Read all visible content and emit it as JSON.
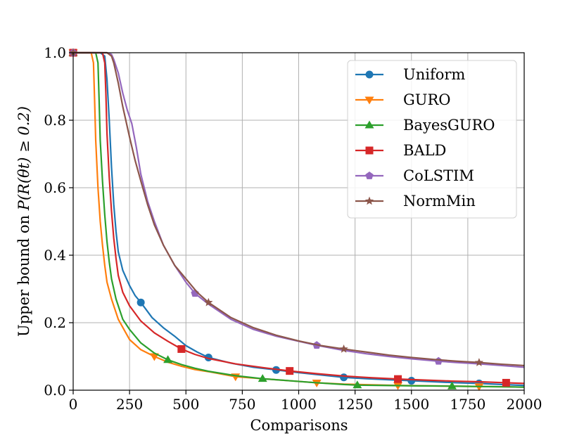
{
  "chart_data": {
    "type": "line",
    "title": "",
    "xlabel": "Comparisons",
    "ylabel_prefix": "Upper bound on ",
    "ylabel_math": "P(R(θt) ≥ 0.2)",
    "xlim": [
      0,
      2000
    ],
    "ylim": [
      0,
      1.0
    ],
    "grid": true,
    "legend_position": "top-right",
    "xticks": [
      0,
      250,
      500,
      750,
      1000,
      1250,
      1500,
      1750,
      2000
    ],
    "xtick_labels": [
      "0",
      "250",
      "500",
      "750",
      "1000",
      "1250",
      "1500",
      "1750",
      "2000"
    ],
    "yticks": [
      0.0,
      0.2,
      0.4,
      0.6,
      0.8,
      1.0
    ],
    "ytick_labels": [
      "0.0",
      "0.2",
      "0.4",
      "0.6",
      "0.8",
      "1.0"
    ],
    "series": [
      {
        "name": "Uniform",
        "color": "#1f77b4",
        "marker": "circle",
        "x": [
          0,
          120,
          140,
          150,
          160,
          170,
          180,
          190,
          200,
          220,
          250,
          275,
          300,
          350,
          400,
          450,
          500,
          550,
          600,
          700,
          800,
          900,
          1000,
          1100,
          1200,
          1300,
          1400,
          1500,
          1600,
          1700,
          1800,
          1900,
          2000
        ],
        "y": [
          1.0,
          1.0,
          0.99,
          0.92,
          0.8,
          0.66,
          0.55,
          0.47,
          0.41,
          0.355,
          0.31,
          0.28,
          0.26,
          0.215,
          0.185,
          0.16,
          0.132,
          0.113,
          0.097,
          0.08,
          0.068,
          0.06,
          0.052,
          0.045,
          0.038,
          0.034,
          0.031,
          0.028,
          0.025,
          0.022,
          0.02,
          0.017,
          0.014
        ],
        "marker_x": [
          0,
          300,
          600,
          900,
          1200,
          1500,
          1800
        ],
        "marker_y": [
          1.0,
          0.26,
          0.097,
          0.06,
          0.038,
          0.028,
          0.02
        ]
      },
      {
        "name": "GURO",
        "color": "#ff7f0e",
        "marker": "triangle-down",
        "x": [
          0,
          80,
          90,
          95,
          100,
          110,
          120,
          130,
          140,
          150,
          170,
          200,
          250,
          300,
          360,
          420,
          480,
          540,
          600,
          720,
          840,
          960,
          1080,
          1200,
          1320,
          1440,
          1560,
          1680,
          1800,
          1920,
          2000
        ],
        "y": [
          1.0,
          1.0,
          0.97,
          0.86,
          0.74,
          0.6,
          0.5,
          0.43,
          0.37,
          0.32,
          0.27,
          0.21,
          0.15,
          0.12,
          0.1,
          0.083,
          0.071,
          0.061,
          0.055,
          0.04,
          0.034,
          0.028,
          0.022,
          0.018,
          0.016,
          0.014,
          0.013,
          0.012,
          0.011,
          0.01,
          0.009
        ],
        "marker_x": [
          0,
          360,
          720,
          1080,
          1440,
          1800
        ],
        "marker_y": [
          1.0,
          0.1,
          0.04,
          0.022,
          0.014,
          0.011
        ]
      },
      {
        "name": "BayesGURO",
        "color": "#2ca02c",
        "marker": "triangle-up",
        "x": [
          0,
          100,
          110,
          115,
          120,
          130,
          140,
          150,
          160,
          170,
          190,
          220,
          250,
          300,
          360,
          420,
          480,
          540,
          600,
          720,
          840,
          960,
          1080,
          1200,
          1260,
          1380,
          1500,
          1680,
          1800,
          1920,
          2000
        ],
        "y": [
          1.0,
          1.0,
          0.97,
          0.86,
          0.74,
          0.62,
          0.52,
          0.44,
          0.38,
          0.33,
          0.27,
          0.21,
          0.18,
          0.14,
          0.11,
          0.09,
          0.076,
          0.065,
          0.056,
          0.043,
          0.034,
          0.028,
          0.022,
          0.017,
          0.015,
          0.014,
          0.013,
          0.012,
          0.011,
          0.01,
          0.009
        ],
        "marker_x": [
          0,
          420,
          840,
          1260,
          1680
        ],
        "marker_y": [
          1.0,
          0.09,
          0.034,
          0.015,
          0.012
        ]
      },
      {
        "name": "BALD",
        "color": "#d62728",
        "marker": "square",
        "x": [
          0,
          130,
          140,
          145,
          150,
          160,
          170,
          180,
          190,
          200,
          220,
          250,
          300,
          360,
          420,
          480,
          540,
          600,
          720,
          840,
          960,
          1080,
          1200,
          1320,
          1440,
          1560,
          1680,
          1800,
          1920,
          2000
        ],
        "y": [
          1.0,
          1.0,
          0.97,
          0.88,
          0.76,
          0.63,
          0.53,
          0.45,
          0.39,
          0.34,
          0.29,
          0.25,
          0.205,
          0.17,
          0.145,
          0.122,
          0.106,
          0.094,
          0.078,
          0.067,
          0.057,
          0.049,
          0.042,
          0.037,
          0.033,
          0.03,
          0.027,
          0.025,
          0.022,
          0.02
        ],
        "marker_x": [
          0,
          480,
          960,
          1440,
          1920
        ],
        "marker_y": [
          1.0,
          0.122,
          0.057,
          0.033,
          0.022
        ]
      },
      {
        "name": "CoLSTIM",
        "color": "#9467bd",
        "marker": "pentagon",
        "x": [
          0,
          150,
          170,
          180,
          200,
          220,
          240,
          260,
          280,
          300,
          330,
          360,
          400,
          450,
          500,
          540,
          600,
          700,
          800,
          900,
          1000,
          1080,
          1200,
          1300,
          1400,
          1500,
          1620,
          1700,
          1800,
          1900,
          2000
        ],
        "y": [
          1.0,
          1.0,
          0.995,
          0.98,
          0.94,
          0.88,
          0.83,
          0.79,
          0.72,
          0.64,
          0.56,
          0.5,
          0.43,
          0.37,
          0.32,
          0.287,
          0.255,
          0.21,
          0.18,
          0.16,
          0.145,
          0.133,
          0.118,
          0.108,
          0.1,
          0.093,
          0.086,
          0.082,
          0.078,
          0.073,
          0.068
        ],
        "marker_x": [
          0,
          540,
          1080,
          1620
        ],
        "marker_y": [
          1.0,
          0.287,
          0.133,
          0.086
        ]
      },
      {
        "name": "NormMin",
        "color": "#8c564b",
        "marker": "star",
        "x": [
          0,
          150,
          170,
          180,
          190,
          200,
          220,
          250,
          275,
          300,
          330,
          360,
          400,
          450,
          500,
          550,
          600,
          700,
          800,
          900,
          1000,
          1100,
          1200,
          1300,
          1400,
          1500,
          1600,
          1700,
          1800,
          1900,
          2000
        ],
        "y": [
          1.0,
          1.0,
          0.99,
          0.97,
          0.94,
          0.91,
          0.84,
          0.75,
          0.68,
          0.62,
          0.55,
          0.49,
          0.43,
          0.37,
          0.33,
          0.29,
          0.26,
          0.215,
          0.185,
          0.163,
          0.146,
          0.132,
          0.122,
          0.113,
          0.104,
          0.097,
          0.091,
          0.086,
          0.082,
          0.077,
          0.073
        ],
        "marker_x": [
          0,
          600,
          1200,
          1800
        ],
        "marker_y": [
          1.0,
          0.26,
          0.122,
          0.082
        ]
      }
    ]
  }
}
